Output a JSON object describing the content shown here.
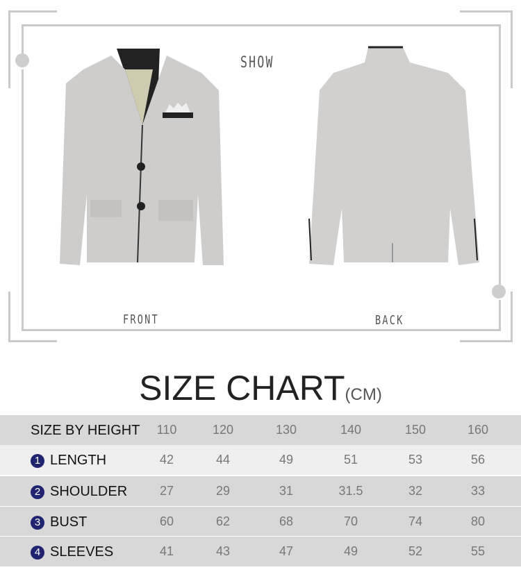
{
  "showcase": {
    "title": "SHOW",
    "front_label": "FRONT",
    "back_label": "BACK"
  },
  "size_chart": {
    "title": "SIZE CHART",
    "unit": "(CM)",
    "header": {
      "label": "SIZE BY HEIGHT",
      "sizes": [
        "110",
        "120",
        "130",
        "140",
        "150",
        "160"
      ]
    },
    "rows": [
      {
        "num": "1",
        "label": "LENGTH",
        "values": [
          "42",
          "44",
          "49",
          "51",
          "53",
          "56"
        ]
      },
      {
        "num": "2",
        "label": "SHOULDER",
        "values": [
          "27",
          "29",
          "31",
          "31.5",
          "32",
          "33"
        ]
      },
      {
        "num": "3",
        "label": "BUST",
        "values": [
          "60",
          "62",
          "68",
          "70",
          "74",
          "80"
        ]
      },
      {
        "num": "4",
        "label": "SLEEVES",
        "values": [
          "41",
          "43",
          "47",
          "49",
          "52",
          "55"
        ]
      }
    ]
  },
  "colors": {
    "row_dark": "#d8d8d8",
    "row_light": "#efefef",
    "badge": "#1f2370"
  }
}
